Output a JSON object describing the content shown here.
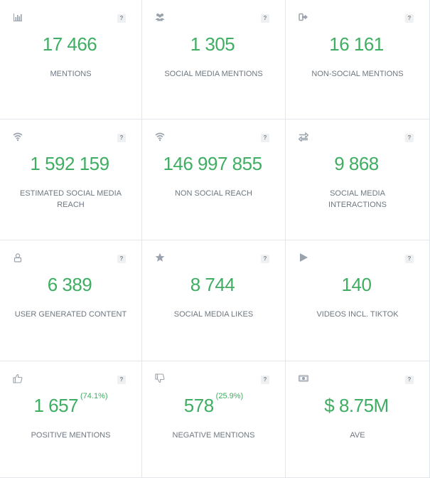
{
  "cards": [
    {
      "icon": "bar-chart-icon",
      "value": "17 466",
      "pct": "",
      "label": "MENTIONS",
      "help": "?"
    },
    {
      "icon": "users-icon",
      "value": "1 305",
      "pct": "",
      "label": "SOCIAL MEDIA MENTIONS",
      "help": "?"
    },
    {
      "icon": "sign-out-icon",
      "value": "16 161",
      "pct": "",
      "label": "NON-SOCIAL MENTIONS",
      "help": "?"
    },
    {
      "icon": "wifi-icon",
      "value": "1 592 159",
      "pct": "",
      "label": "ESTIMATED SOCIAL MEDIA REACH",
      "help": "?"
    },
    {
      "icon": "wifi-icon",
      "value": "146 997 855",
      "pct": "",
      "label": "NON SOCIAL REACH",
      "help": "?"
    },
    {
      "icon": "exchange-icon",
      "value": "9 868",
      "pct": "",
      "label": "SOCIAL MEDIA INTERACTIONS",
      "help": "?"
    },
    {
      "icon": "user-icon",
      "value": "6 389",
      "pct": "",
      "label": "USER GENERATED CONTENT",
      "help": "?"
    },
    {
      "icon": "star-icon",
      "value": "8 744",
      "pct": "",
      "label": "SOCIAL MEDIA LIKES",
      "help": "?"
    },
    {
      "icon": "play-icon",
      "value": "140",
      "pct": "",
      "label": "VIDEOS INCL. TIKTOK",
      "help": "?"
    },
    {
      "icon": "thumbs-up-icon",
      "value": "1 657",
      "pct": "(74.1%)",
      "label": "POSITIVE MENTIONS",
      "help": "?"
    },
    {
      "icon": "thumbs-down-icon",
      "value": "578",
      "pct": "(25.9%)",
      "label": "NEGATIVE MENTIONS",
      "help": "?"
    },
    {
      "icon": "money-icon",
      "value": "$ 8.75M",
      "pct": "",
      "label": "AVE",
      "help": "?"
    }
  ],
  "colors": {
    "value": "#3fae62",
    "label": "#6e7780",
    "icon": "#9aa3ad",
    "border": "#e3e6ea"
  }
}
